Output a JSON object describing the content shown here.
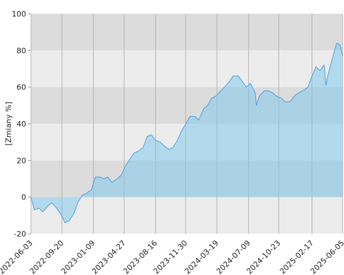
{
  "chart_data": {
    "type": "area",
    "y_label": "[Zmiany %]",
    "x": [
      "2022-06-03",
      "2022-06-15",
      "2022-07-01",
      "2022-07-15",
      "2022-08-01",
      "2022-08-15",
      "2022-09-01",
      "2022-09-15",
      "2022-10-01",
      "2022-10-15",
      "2022-11-01",
      "2022-11-15",
      "2022-12-01",
      "2022-12-15",
      "2023-01-02",
      "2023-01-16",
      "2023-02-01",
      "2023-02-15",
      "2023-03-01",
      "2023-03-15",
      "2023-04-03",
      "2023-04-17",
      "2023-05-02",
      "2023-05-15",
      "2023-06-01",
      "2023-06-15",
      "2023-07-03",
      "2023-07-17",
      "2023-08-01",
      "2023-08-15",
      "2023-09-01",
      "2023-09-15",
      "2023-10-02",
      "2023-10-16",
      "2023-11-01",
      "2023-11-15",
      "2023-12-01",
      "2023-12-15",
      "2024-01-02",
      "2024-01-15",
      "2024-02-01",
      "2024-02-15",
      "2024-03-01",
      "2024-03-15",
      "2024-04-02",
      "2024-04-15",
      "2024-05-02",
      "2024-05-15",
      "2024-06-03",
      "2024-06-17",
      "2024-07-01",
      "2024-07-15",
      "2024-08-01",
      "2024-08-05",
      "2024-08-15",
      "2024-09-02",
      "2024-09-16",
      "2024-10-01",
      "2024-10-15",
      "2024-11-01",
      "2024-11-15",
      "2024-12-02",
      "2024-12-16",
      "2025-01-02",
      "2025-01-15",
      "2025-02-03",
      "2025-02-17",
      "2025-03-03",
      "2025-03-17",
      "2025-04-01",
      "2025-04-07",
      "2025-04-15",
      "2025-05-02",
      "2025-05-15",
      "2025-05-27",
      "2025-06-05"
    ],
    "values": [
      0,
      -7,
      -6,
      -8,
      -5,
      -3,
      -6,
      -9,
      -14,
      -13,
      -9,
      -3,
      1,
      2,
      4,
      11,
      11,
      10,
      11,
      8,
      10,
      12,
      17,
      20,
      24,
      25,
      27,
      33,
      34,
      31,
      30,
      28,
      26,
      27,
      31,
      36,
      40,
      44,
      44,
      42,
      48,
      50,
      54,
      55,
      58,
      60,
      63,
      66,
      66,
      63,
      60,
      62,
      57,
      50,
      55,
      58,
      58,
      57,
      55,
      54,
      52,
      52,
      55,
      57,
      58,
      60,
      66,
      71,
      69,
      72,
      61,
      67,
      77,
      84,
      83,
      77
    ],
    "color": "#4a9fe8",
    "fill": "rgba(120,200,235,0.5)",
    "band_colors": [
      "#ececec",
      "#dcdcdc"
    ],
    "grid_color": "#b4b4b4",
    "xlim": [
      "2022-06-03",
      "2025-06-05"
    ],
    "xticks": [
      "2022-06-03",
      "2022-09-20",
      "2023-01-09",
      "2023-04-27",
      "2023-08-16",
      "2023-11-30",
      "2024-03-19",
      "2024-07-09",
      "2024-10-23",
      "2025-02-17",
      "2025-06-05"
    ],
    "ylim": [
      -20,
      100
    ],
    "yticks": [
      -20,
      0,
      20,
      40,
      60,
      80,
      100
    ]
  }
}
